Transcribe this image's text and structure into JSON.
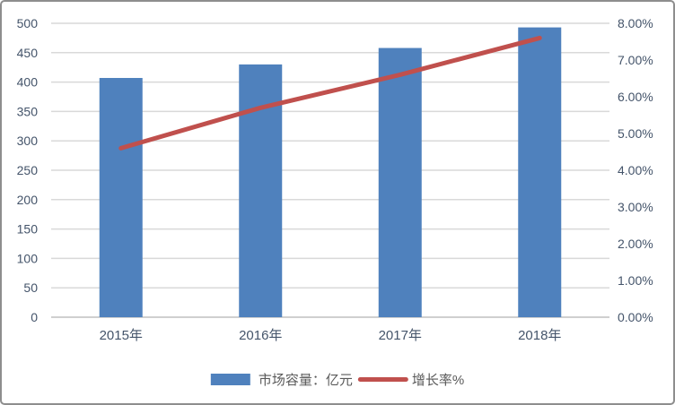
{
  "chart_data": {
    "type": "combo",
    "title": "",
    "categories": [
      "2015年",
      "2016年",
      "2017年",
      "2018年"
    ],
    "series": [
      {
        "name": "市场容量：亿元",
        "type": "bar",
        "axis": "left",
        "values": [
          407,
          430,
          458,
          493
        ],
        "color": "#4F81BD"
      },
      {
        "name": "增长率%",
        "type": "line",
        "axis": "right",
        "values": [
          4.6,
          5.7,
          6.6,
          7.6
        ],
        "color": "#C0504D"
      }
    ],
    "left_axis": {
      "min": 0,
      "max": 500,
      "step": 50,
      "tick_labels": [
        "0",
        "50",
        "100",
        "150",
        "200",
        "250",
        "300",
        "350",
        "400",
        "450",
        "500"
      ]
    },
    "right_axis": {
      "min": 0,
      "max": 8,
      "step": 1,
      "tick_labels": [
        "0.00%",
        "1.00%",
        "2.00%",
        "3.00%",
        "4.00%",
        "5.00%",
        "6.00%",
        "7.00%",
        "8.00%"
      ]
    },
    "grid": true,
    "legend_position": "bottom"
  },
  "colors": {
    "bar": "#4F81BD",
    "line": "#C0504D",
    "gridline": "#D9D9D9",
    "axis_line": "#BFBFBF",
    "tick_label": "#44546A",
    "legend_text": "#595959",
    "frame_border": "#8e8e8e",
    "background": "#FFFFFF"
  }
}
